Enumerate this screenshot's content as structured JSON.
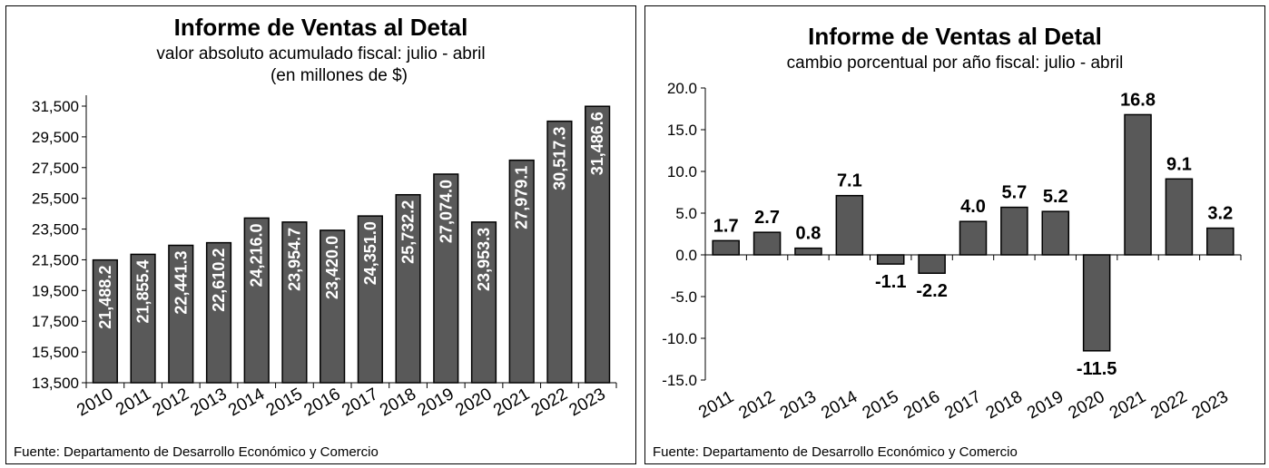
{
  "chart_data": [
    {
      "type": "bar",
      "title": "Informe de Ventas al Detal",
      "subtitle": "valor absoluto acumulado fiscal: julio - abril",
      "subtitle2": "(en millones de $)",
      "source": "Fuente: Departamento de Desarrollo Económico y Comercio",
      "categories": [
        "2010",
        "2011",
        "2012",
        "2013",
        "2014",
        "2015",
        "2016",
        "2017",
        "2018",
        "2019",
        "2020",
        "2021",
        "2022",
        "2023"
      ],
      "values": [
        21488.2,
        21855.4,
        22441.3,
        22610.2,
        24216.0,
        23954.7,
        23420.0,
        24351.0,
        25732.2,
        27074.0,
        23953.3,
        27979.1,
        30517.3,
        31486.6
      ],
      "value_labels": [
        "21,488.2",
        "21,855.4",
        "22,441.3",
        "22,610.2",
        "24,216.0",
        "23,954.7",
        "23,420.0",
        "24,351.0",
        "25,732.2",
        "27,074.0",
        "23,953.3",
        "27,979.1",
        "30,517.3",
        "31,486.6"
      ],
      "ylim": [
        13500,
        31500
      ],
      "yticks": [
        13500,
        15500,
        17500,
        19500,
        21500,
        23500,
        25500,
        27500,
        29500,
        31500
      ],
      "ytick_labels": [
        "13,500",
        "15,500",
        "17,500",
        "19,500",
        "21,500",
        "23,500",
        "25,500",
        "27,500",
        "29,500",
        "31,500"
      ],
      "bar_color": "#595959"
    },
    {
      "type": "bar",
      "title": "Informe de Ventas al Detal",
      "subtitle": "cambio porcentual por año fiscal: julio - abril",
      "source": "Fuente: Departamento de Desarrollo Económico y Comercio",
      "categories": [
        "2011",
        "2012",
        "2013",
        "2014",
        "2015",
        "2016",
        "2017",
        "2018",
        "2019",
        "2020",
        "2021",
        "2022",
        "2023"
      ],
      "values": [
        1.7,
        2.7,
        0.8,
        7.1,
        -1.1,
        -2.2,
        4.0,
        5.7,
        5.2,
        -11.5,
        16.8,
        9.1,
        3.2
      ],
      "value_labels": [
        "1.7",
        "2.7",
        "0.8",
        "7.1",
        "-1.1",
        "-2.2",
        "4.0",
        "5.7",
        "5.2",
        "-11.5",
        "16.8",
        "9.1",
        "3.2"
      ],
      "ylim": [
        -15,
        20
      ],
      "yticks": [
        -15,
        -10,
        -5,
        0,
        5,
        10,
        15,
        20
      ],
      "ytick_labels": [
        "-15.0",
        "-10.0",
        "-5.0",
        "0.0",
        "5.0",
        "10.0",
        "15.0",
        "20.0"
      ],
      "bar_color": "#595959"
    }
  ]
}
